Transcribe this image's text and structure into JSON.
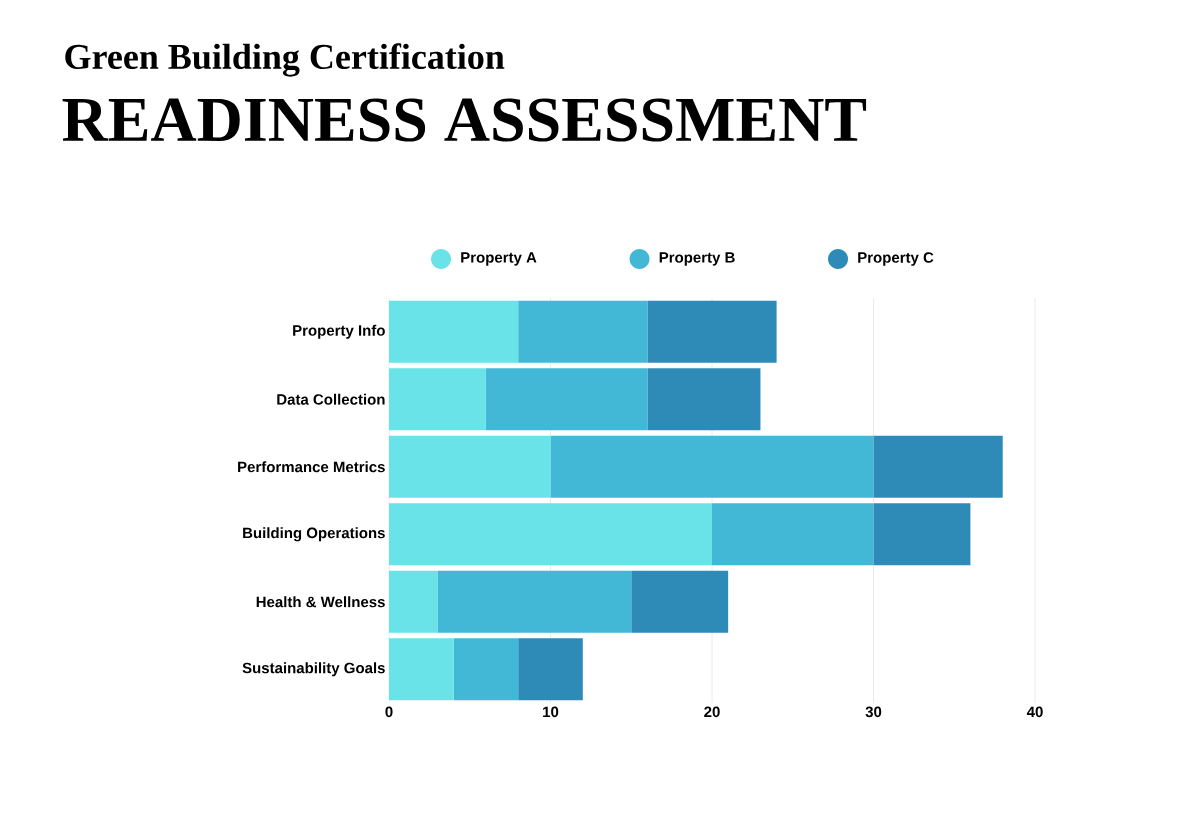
{
  "chart_data": {
    "type": "bar",
    "orientation": "horizontal",
    "stacked": true,
    "title": "Green Building Certification",
    "subtitle": "READINESS ASSESSMENT",
    "categories": [
      "Property Info",
      "Data Collection",
      "Performance Metrics",
      "Building Operations",
      "Health & Wellness",
      "Sustainability Goals"
    ],
    "series": [
      {
        "name": "Property A",
        "color": "#6ae3e8",
        "values": [
          8,
          6,
          10,
          20,
          3,
          4
        ]
      },
      {
        "name": "Property B",
        "color": "#42b8d6",
        "values": [
          8,
          10,
          20,
          10,
          12,
          4
        ]
      },
      {
        "name": "Property C",
        "color": "#2e8bb8",
        "values": [
          8,
          7,
          8,
          6,
          6,
          4
        ]
      }
    ],
    "xlim": [
      0,
      40
    ],
    "xticks": [
      0,
      10,
      20,
      30,
      40
    ],
    "grid": "x",
    "legend": "top"
  }
}
